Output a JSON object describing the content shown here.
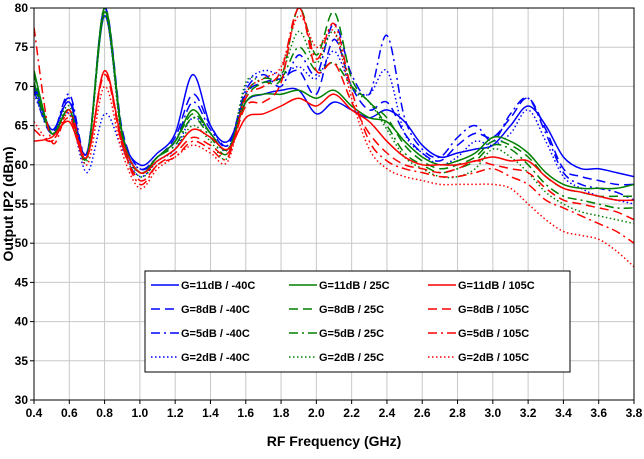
{
  "chart_data": {
    "type": "line",
    "xlabel": "RF Frequency (GHz)",
    "ylabel": "Output IP2 (dBm)",
    "xlim": [
      0.4,
      3.8
    ],
    "ylim": [
      30,
      80
    ],
    "xticks": [
      0.4,
      0.6,
      0.8,
      1.0,
      1.2,
      1.4,
      1.6,
      1.8,
      2.0,
      2.2,
      2.4,
      2.6,
      2.8,
      3.0,
      3.2,
      3.4,
      3.6,
      3.8
    ],
    "xtick_labels": [
      "0.4",
      "0.6",
      "0.8",
      "1.0",
      "1.2",
      "1.4",
      "1.6",
      "1.8",
      "2.0",
      "2.2",
      "2.4",
      "2.6",
      "2.8",
      "3.0",
      "3.2",
      "3.4",
      "3.6",
      "3.8"
    ],
    "yticks": [
      30,
      35,
      40,
      45,
      50,
      55,
      60,
      65,
      70,
      75,
      80
    ],
    "ytick_labels": [
      "30",
      "35",
      "40",
      "45",
      "50",
      "55",
      "60",
      "65",
      "70",
      "75",
      "80"
    ],
    "grid": true,
    "legend_position": "lower-center",
    "x": [
      0.4,
      0.5,
      0.6,
      0.7,
      0.8,
      0.9,
      1.0,
      1.1,
      1.2,
      1.3,
      1.4,
      1.5,
      1.6,
      1.7,
      1.8,
      1.9,
      2.0,
      2.1,
      2.2,
      2.3,
      2.4,
      2.5,
      2.6,
      2.7,
      2.8,
      2.9,
      3.0,
      3.1,
      3.2,
      3.3,
      3.4,
      3.5,
      3.6,
      3.7,
      3.8
    ],
    "series": [
      {
        "name": "G=11dB / -40C",
        "color": "#0000ff",
        "dash": "solid",
        "values": [
          70.5,
          64.5,
          68.0,
          61.5,
          79.0,
          64.0,
          60.0,
          61.5,
          64.0,
          71.5,
          65.0,
          63.0,
          68.0,
          69.0,
          69.5,
          69.5,
          66.5,
          68.0,
          67.0,
          66.0,
          67.0,
          65.5,
          62.5,
          61.0,
          61.5,
          62.0,
          62.5,
          65.0,
          67.5,
          65.0,
          61.0,
          59.5,
          59.5,
          59.0,
          58.5
        ]
      },
      {
        "name": "G=8dB / -40C",
        "color": "#0000ff",
        "dash": "long-dash",
        "values": [
          70.0,
          64.0,
          68.5,
          61.0,
          80.0,
          64.5,
          59.5,
          61.0,
          63.5,
          69.0,
          65.0,
          62.5,
          69.0,
          70.5,
          71.0,
          72.0,
          69.0,
          76.0,
          70.0,
          67.0,
          68.0,
          64.0,
          61.5,
          60.5,
          62.5,
          64.0,
          63.5,
          66.0,
          68.5,
          64.5,
          59.5,
          58.5,
          58.0,
          57.5,
          57.5
        ]
      },
      {
        "name": "G=5dB / -40C",
        "color": "#0000ff",
        "dash": "dash-dot",
        "values": [
          69.5,
          64.0,
          69.0,
          61.5,
          80.0,
          63.5,
          59.5,
          61.0,
          63.0,
          68.0,
          64.5,
          62.5,
          69.5,
          71.5,
          70.0,
          74.0,
          71.5,
          78.0,
          71.5,
          69.0,
          76.5,
          66.0,
          62.0,
          61.0,
          63.5,
          65.0,
          63.0,
          66.5,
          68.5,
          64.0,
          59.0,
          57.5,
          57.0,
          56.5,
          55.5
        ]
      },
      {
        "name": "G=2dB / -40C",
        "color": "#0000ff",
        "dash": "dotted",
        "values": [
          69.0,
          64.5,
          66.5,
          59.0,
          66.5,
          62.0,
          58.5,
          60.5,
          62.0,
          66.0,
          64.0,
          62.0,
          70.0,
          72.0,
          71.5,
          72.5,
          71.0,
          74.5,
          70.0,
          69.0,
          72.0,
          64.0,
          61.5,
          60.0,
          61.0,
          63.0,
          62.5,
          64.0,
          67.0,
          63.0,
          58.5,
          57.0,
          56.0,
          55.5,
          55.0
        ]
      },
      {
        "name": "G=11dB / 25C",
        "color": "#008000",
        "dash": "solid",
        "values": [
          72.0,
          64.0,
          67.0,
          61.0,
          79.5,
          64.0,
          59.0,
          61.0,
          63.0,
          67.0,
          64.0,
          62.0,
          68.0,
          69.0,
          69.0,
          69.5,
          68.5,
          69.5,
          67.5,
          66.0,
          65.5,
          63.0,
          61.0,
          60.0,
          60.5,
          61.5,
          63.5,
          63.0,
          61.5,
          59.0,
          57.5,
          57.0,
          57.0,
          57.0,
          57.5
        ]
      },
      {
        "name": "G=8dB / 25C",
        "color": "#008000",
        "dash": "long-dash",
        "values": [
          71.5,
          64.0,
          67.0,
          61.0,
          80.0,
          64.0,
          59.0,
          61.0,
          63.0,
          66.5,
          64.0,
          62.0,
          68.5,
          70.5,
          71.0,
          80.0,
          74.0,
          79.5,
          71.0,
          68.0,
          66.0,
          62.5,
          60.5,
          59.5,
          60.0,
          61.0,
          63.0,
          62.5,
          61.0,
          58.5,
          57.0,
          56.5,
          56.0,
          56.0,
          56.0
        ]
      },
      {
        "name": "G=5dB / 25C",
        "color": "#008000",
        "dash": "dash-dot",
        "values": [
          70.5,
          64.0,
          67.0,
          61.0,
          80.0,
          63.5,
          59.0,
          61.0,
          62.5,
          66.0,
          63.5,
          61.5,
          69.0,
          71.0,
          71.0,
          75.0,
          72.0,
          73.0,
          70.0,
          68.0,
          65.0,
          61.5,
          60.0,
          59.0,
          59.5,
          60.5,
          62.5,
          62.0,
          60.0,
          57.5,
          56.0,
          55.5,
          55.0,
          54.5,
          54.5
        ]
      },
      {
        "name": "G=2dB / 25C",
        "color": "#008000",
        "dash": "dotted",
        "values": [
          70.0,
          64.0,
          67.5,
          60.5,
          79.0,
          63.0,
          58.5,
          60.5,
          62.0,
          65.0,
          63.0,
          61.0,
          70.5,
          70.5,
          71.5,
          77.0,
          73.0,
          77.0,
          70.0,
          68.0,
          64.5,
          61.0,
          59.5,
          58.5,
          58.5,
          59.5,
          62.0,
          61.0,
          59.0,
          56.5,
          55.0,
          54.0,
          53.5,
          53.0,
          52.5
        ]
      },
      {
        "name": "G=11dB / 105C",
        "color": "#ff0000",
        "dash": "solid",
        "values": [
          63.0,
          63.5,
          65.5,
          61.0,
          72.0,
          63.0,
          59.0,
          60.5,
          62.0,
          64.5,
          63.5,
          62.0,
          66.0,
          66.5,
          67.5,
          68.5,
          67.5,
          69.0,
          67.0,
          65.5,
          63.0,
          61.0,
          60.0,
          60.0,
          60.0,
          60.5,
          61.0,
          60.5,
          60.5,
          58.5,
          57.0,
          56.5,
          56.0,
          55.5,
          55.5
        ]
      },
      {
        "name": "G=8dB / 105C",
        "color": "#ff0000",
        "dash": "long-dash",
        "values": [
          64.5,
          63.0,
          66.0,
          61.0,
          71.5,
          62.5,
          58.0,
          60.0,
          61.5,
          63.5,
          62.5,
          61.5,
          67.5,
          68.0,
          70.5,
          80.0,
          72.0,
          73.0,
          68.0,
          64.0,
          61.5,
          60.0,
          59.5,
          59.0,
          59.5,
          60.5,
          60.0,
          59.5,
          59.0,
          57.0,
          55.5,
          55.0,
          54.5,
          54.0,
          53.0
        ]
      },
      {
        "name": "G=5dB / 105C",
        "color": "#ff0000",
        "dash": "dash-dot",
        "values": [
          77.5,
          63.0,
          67.0,
          61.0,
          72.0,
          62.5,
          57.5,
          60.0,
          61.0,
          63.0,
          62.0,
          61.0,
          68.5,
          70.0,
          72.0,
          80.0,
          73.5,
          78.0,
          69.5,
          63.0,
          60.5,
          59.5,
          59.0,
          58.5,
          58.5,
          59.0,
          59.5,
          58.5,
          57.5,
          55.5,
          54.5,
          53.5,
          52.5,
          51.5,
          50.0
        ]
      },
      {
        "name": "G=2dB / 105C",
        "color": "#ff0000",
        "dash": "dotted",
        "values": [
          65.5,
          63.0,
          66.5,
          60.0,
          70.0,
          61.5,
          57.0,
          59.5,
          61.0,
          62.5,
          61.5,
          60.5,
          69.0,
          71.0,
          72.5,
          79.0,
          75.0,
          77.0,
          68.5,
          62.0,
          59.5,
          58.5,
          58.0,
          57.5,
          57.5,
          57.5,
          57.5,
          57.0,
          55.0,
          53.0,
          51.5,
          51.0,
          50.5,
          49.0,
          47.0
        ]
      }
    ]
  }
}
